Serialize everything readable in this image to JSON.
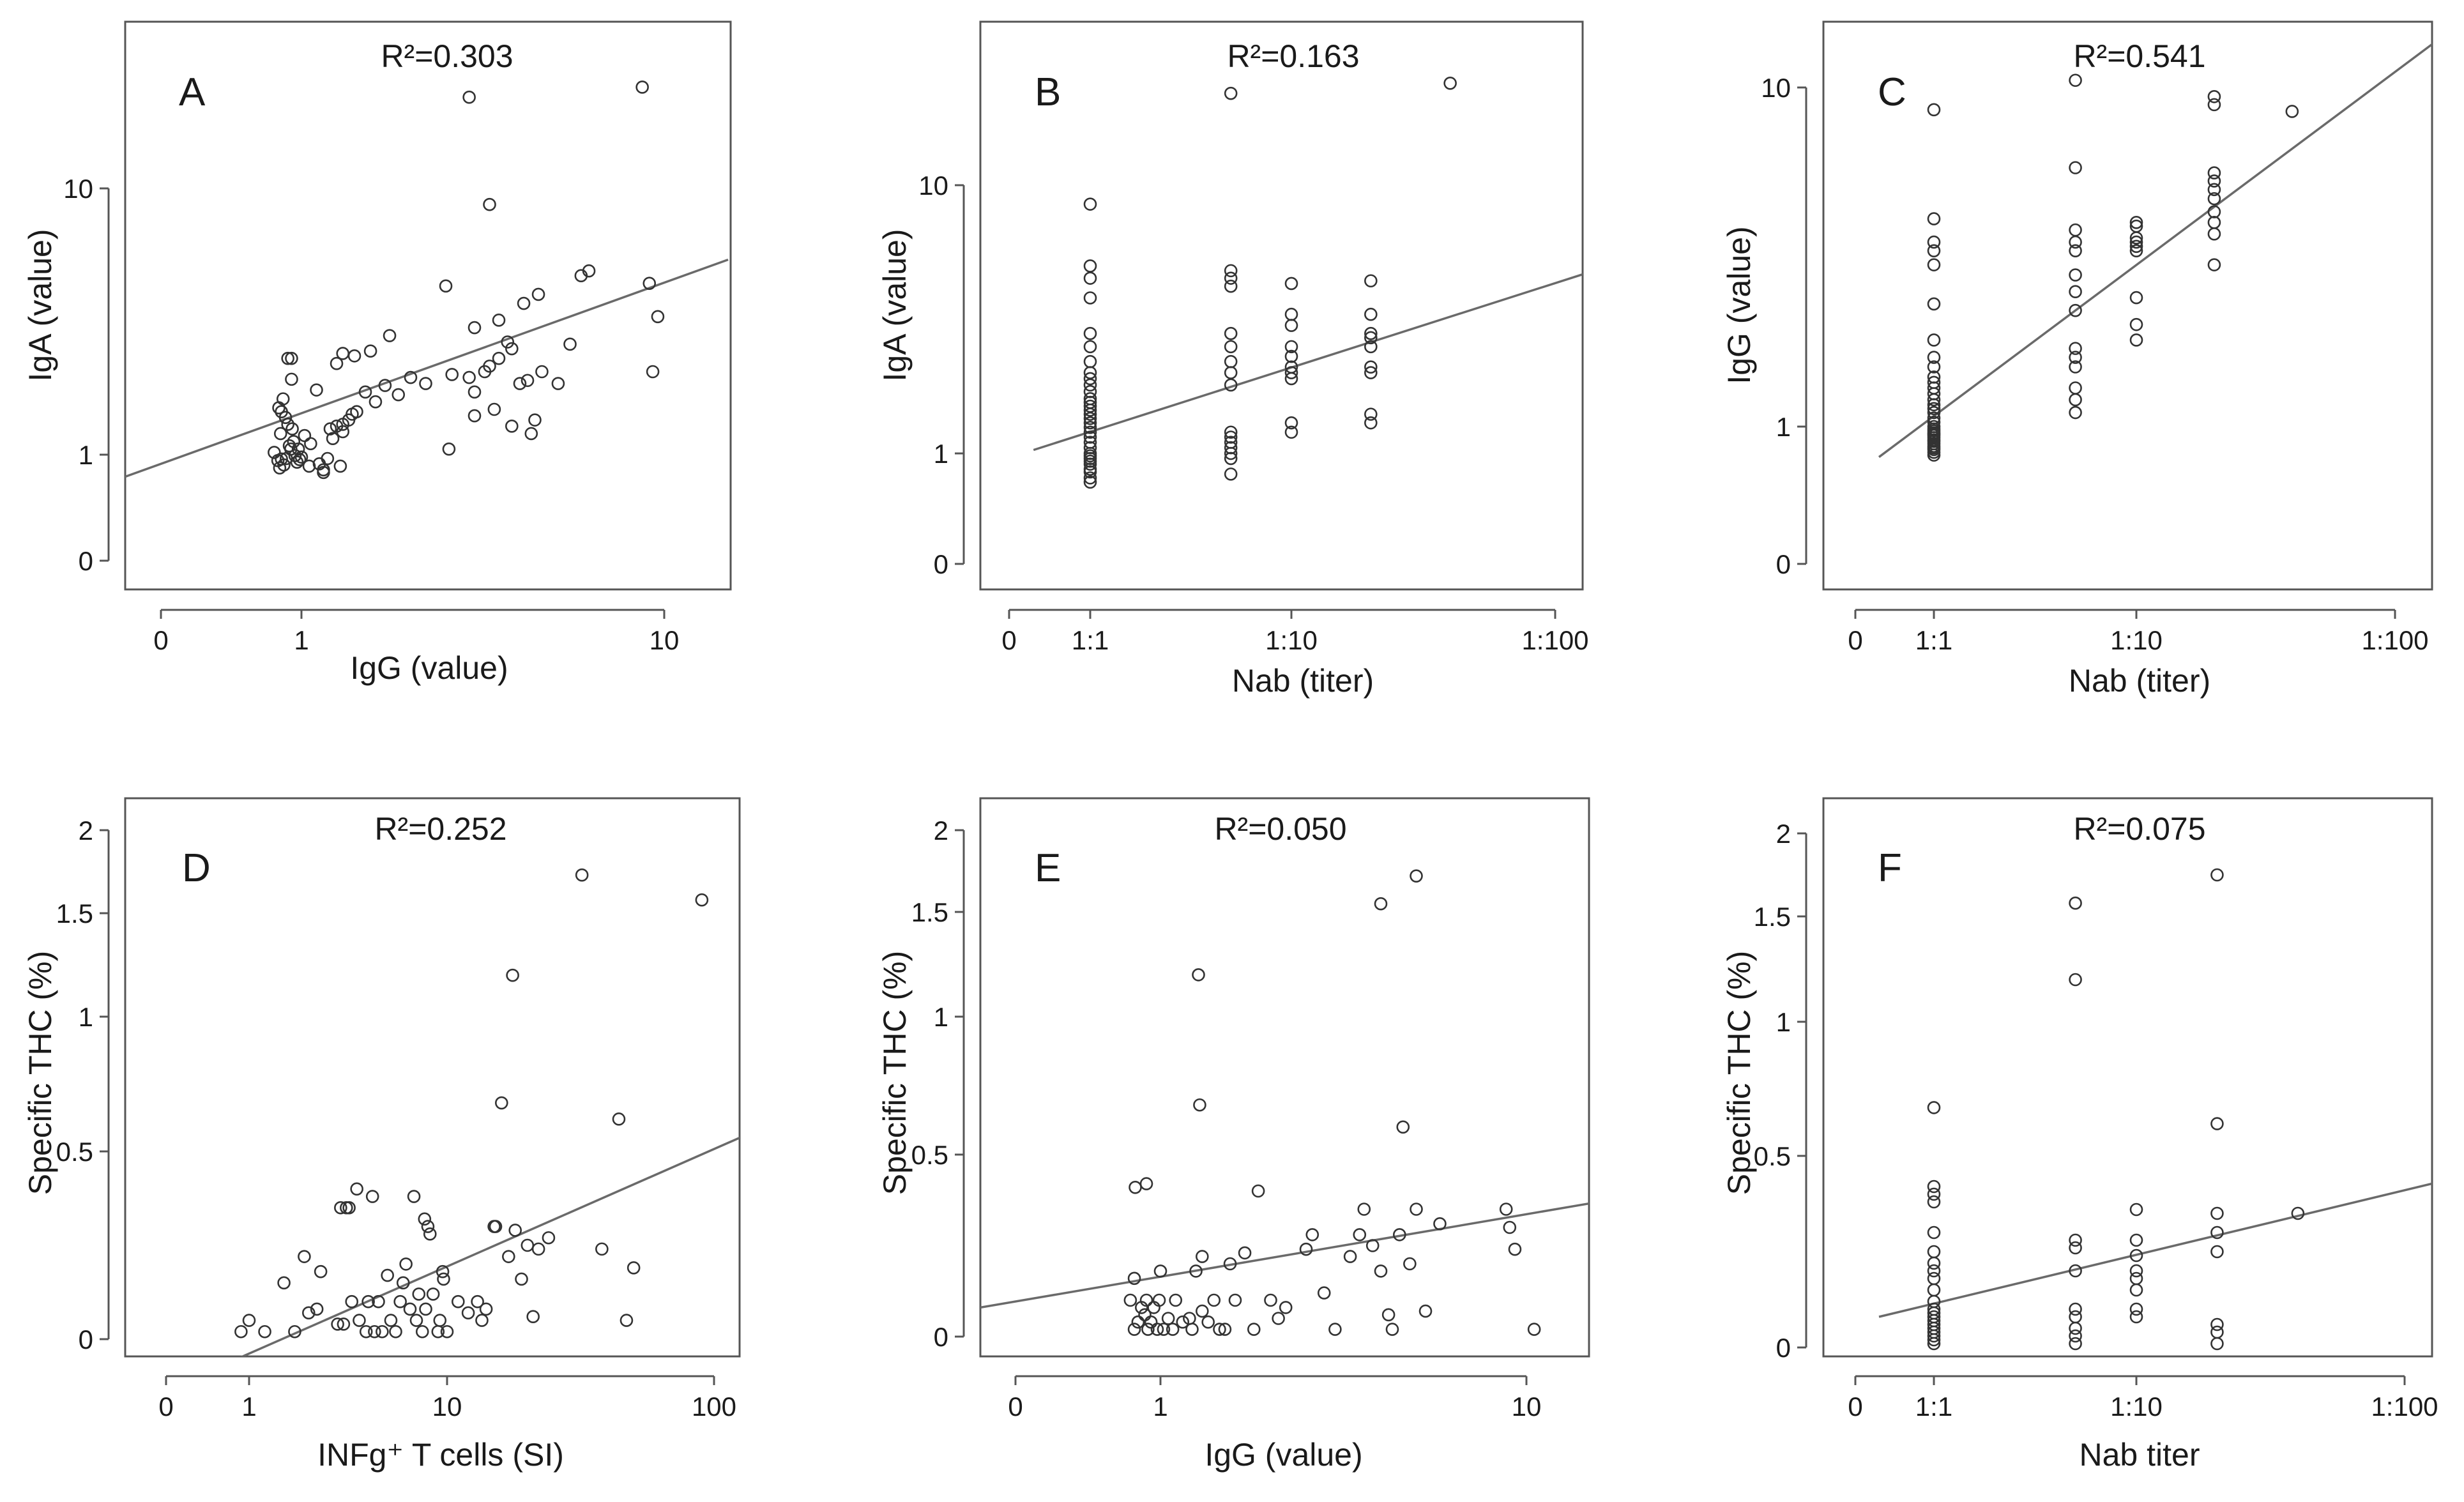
{
  "chart_data": [
    {
      "type": "scatter",
      "panel": "A",
      "annotation": "R²=0.303",
      "xlabel": "IgG (value)",
      "ylabel": "IgA (value)",
      "x_ticks": [
        {
          "label": "0",
          "v": 0
        },
        {
          "label": "1",
          "v": 1
        },
        {
          "label": "10",
          "v": 10
        }
      ],
      "y_ticks": [
        {
          "label": "0",
          "v": 0
        },
        {
          "label": "1",
          "v": 1
        },
        {
          "label": "10",
          "v": 10
        }
      ],
      "x": [
        0.64,
        0.68,
        0.72,
        0.75,
        0.78,
        0.82,
        0.86,
        0.9,
        0.95,
        1.0,
        0.69,
        0.74,
        0.8,
        0.88,
        0.93,
        1.02,
        0.71,
        0.77,
        0.84,
        0.97,
        1.05,
        1.12,
        1.18,
        1.25,
        1.3,
        1.22,
        1.35,
        1.42,
        1.5,
        1.6,
        1.7,
        1.85,
        2.0,
        2.2,
        2.6,
        3.0,
        3.2,
        3.5,
        3.8,
        4.2,
        4.6,
        5.1,
        5.5,
        1.15,
        1.28,
        1.4,
        1.55,
        1.75,
        1.15,
        1.2,
        1.3,
        1.38,
        2.55,
        3.0,
        3.4,
        3.8,
        4.0,
        2.9,
        3.3,
        3.7,
        4.1,
        4.5,
        5.9,
        6.2,
        9.1,
        9.6,
        9.3,
        0.7,
        0.8,
        0.85,
        1.06,
        1.1,
        1.25,
        1.3,
        3.0,
        3.5,
        4.3,
        4.4,
        0.72,
        2.5,
        0.85
      ],
      "y": [
        1.02,
        0.88,
        0.91,
        0.8,
        0.92,
        1.08,
        1.25,
        0.98,
        1.05,
        0.95,
        1.5,
        1.62,
        1.3,
        1.12,
        0.85,
        1.18,
        1.2,
        1.38,
        1.05,
        0.9,
        0.78,
        0.82,
        0.92,
        1.28,
        1.22,
        1.15,
        1.35,
        1.45,
        1.72,
        1.58,
        1.82,
        1.68,
        1.95,
        1.85,
        2.0,
        1.72,
        2.05,
        2.3,
        2.5,
        1.9,
        2.05,
        1.85,
        2.6,
        0.72,
        0.78,
        2.35,
        2.45,
        2.8,
        0.68,
        1.25,
        1.3,
        1.42,
        1.05,
        1.4,
        1.48,
        1.28,
        1.85,
        1.95,
        2.15,
        2.65,
        3.7,
        4.0,
        4.7,
        4.9,
        4.4,
        3.3,
        2.05,
        0.75,
        2.3,
        1.92,
        1.1,
        1.75,
        2.2,
        2.4,
        3.0,
        3.2,
        1.2,
        1.35,
        1.45,
        4.3,
        2.3
      ],
      "x_extra": [
        2.9,
        8.7,
        3.3
      ],
      "y_extra": [
        22,
        24,
        8.7
      ],
      "fit": {
        "x0": 0,
        "y0": 0.62,
        "x1": 15,
        "y1": 5.4
      }
    },
    {
      "type": "scatter",
      "panel": "B",
      "annotation": "R²=0.163",
      "xlabel": "Nab (titer)",
      "ylabel": "IgA (value)",
      "x_ticks": [
        {
          "label": "0",
          "v": 0
        },
        {
          "label": "1:1",
          "v": 1
        },
        {
          "label": "1:10",
          "v": 10
        },
        {
          "label": "1:100",
          "v": 100
        }
      ],
      "y_ticks": [
        {
          "label": "0",
          "v": 0
        },
        {
          "label": "1",
          "v": 1
        },
        {
          "label": "10",
          "v": 10
        }
      ],
      "x": [
        1,
        1,
        1,
        1,
        1,
        1,
        1,
        1,
        1,
        1,
        1,
        1,
        1,
        1,
        1,
        1,
        1,
        1,
        1,
        1,
        1,
        1,
        1,
        1,
        1,
        1,
        1,
        1,
        1,
        1,
        1,
        1,
        5,
        5,
        5,
        5,
        5,
        5,
        5,
        5,
        5,
        5,
        5,
        5,
        5,
        5,
        5,
        10,
        10,
        10,
        10,
        10,
        10,
        10,
        10,
        10,
        10,
        20,
        20,
        20,
        20,
        20,
        20,
        20,
        20,
        20,
        40
      ],
      "y": [
        0.55,
        0.6,
        0.68,
        0.72,
        0.8,
        0.85,
        0.9,
        0.95,
        1.0,
        1.05,
        1.1,
        1.15,
        1.2,
        1.25,
        1.3,
        1.35,
        1.4,
        1.45,
        1.5,
        1.55,
        1.6,
        1.7,
        1.8,
        1.9,
        2.0,
        2.2,
        2.5,
        2.8,
        3.8,
        4.5,
        5.0,
        8.5,
        0.65,
        0.9,
        1.0,
        1.1,
        1.15,
        1.8,
        2.0,
        2.2,
        2.5,
        2.8,
        4.2,
        4.5,
        4.8,
        1.2,
        1.05,
        1.2,
        1.3,
        1.9,
        2.0,
        2.1,
        2.3,
        2.5,
        3.0,
        3.3,
        4.3,
        1.3,
        1.4,
        2.0,
        2.1,
        2.5,
        2.7,
        2.8,
        3.3,
        4.4,
        24
      ],
      "x_extra": [
        5
      ],
      "y_extra": [
        22
      ],
      "fit": {
        "x0": 0.2,
        "y0": 1.03,
        "x1": 150,
        "y1": 4.9
      }
    },
    {
      "type": "scatter",
      "panel": "C",
      "annotation": "R²=0.541",
      "xlabel": "Nab (titer)",
      "ylabel": "IgG (value)",
      "x_ticks": [
        {
          "label": "0",
          "v": 0
        },
        {
          "label": "1:1",
          "v": 1
        },
        {
          "label": "1:10",
          "v": 10
        },
        {
          "label": "1:100",
          "v": 100
        }
      ],
      "y_ticks": [
        {
          "label": "0",
          "v": 0
        },
        {
          "label": "1",
          "v": 1
        },
        {
          "label": "10",
          "v": 10
        }
      ],
      "x": [
        1,
        1,
        1,
        1,
        1,
        1,
        1,
        1,
        1,
        1,
        1,
        1,
        1,
        1,
        1,
        1,
        1,
        1,
        1,
        1,
        1,
        1,
        1,
        1,
        1,
        1,
        1,
        1,
        1,
        1,
        1,
        1,
        1,
        1,
        5,
        5,
        5,
        5,
        5,
        5,
        5,
        5,
        5,
        5,
        5,
        5,
        5,
        5,
        10,
        10,
        10,
        10,
        10,
        10,
        10,
        10,
        10,
        20,
        20,
        20,
        20,
        20,
        20,
        20,
        20,
        20,
        20,
        40
      ],
      "y": [
        0.62,
        0.65,
        0.68,
        0.7,
        0.72,
        0.75,
        0.78,
        0.8,
        0.83,
        0.86,
        0.88,
        0.9,
        0.93,
        0.96,
        1.0,
        1.03,
        1.06,
        1.1,
        1.13,
        1.16,
        1.2,
        1.25,
        1.3,
        1.35,
        1.4,
        1.5,
        1.6,
        1.8,
        2.3,
        3.0,
        3.3,
        3.5,
        4.1,
        8.6,
        1.1,
        1.2,
        1.3,
        1.5,
        1.6,
        1.7,
        2.2,
        2.5,
        2.8,
        3.3,
        3.5,
        3.8,
        5.8,
        10.5,
        1.8,
        2.0,
        2.4,
        3.3,
        3.4,
        3.5,
        3.6,
        3.9,
        4.0,
        3.0,
        3.7,
        4.0,
        4.3,
        4.7,
        5.0,
        5.3,
        5.6,
        8.9,
        9.4,
        8.5
      ],
      "fit": {
        "x0": 0.2,
        "y0": 0.6,
        "x1": 150,
        "y1": 14
      }
    },
    {
      "type": "scatter",
      "panel": "D",
      "annotation": "R²=0.252",
      "xlabel": "INFg⁺ T cells (SI)",
      "ylabel": "Specific THC (%)",
      "x_ticks": [
        {
          "label": "0",
          "v": 0
        },
        {
          "label": "1",
          "v": 1
        },
        {
          "label": "10",
          "v": 10
        },
        {
          "label": "100",
          "v": 100
        }
      ],
      "y_ticks": [
        {
          "label": "0",
          "v": 0
        },
        {
          "label": "0.5",
          "v": 0.5
        },
        {
          "label": "1",
          "v": 1
        },
        {
          "label": "1.5",
          "v": 1.5
        },
        {
          "label": "2",
          "v": 2
        }
      ],
      "x": [
        0.8,
        1.0,
        1.2,
        1.5,
        1.7,
        1.9,
        2.0,
        2.2,
        2.3,
        2.8,
        2.9,
        3.0,
        3.1,
        3.3,
        3.6,
        3.9,
        4.0,
        4.3,
        4.5,
        4.7,
        5.0,
        5.2,
        5.5,
        5.8,
        6.0,
        6.2,
        6.5,
        7.0,
        7.2,
        7.5,
        7.8,
        8.0,
        8.5,
        9.0,
        9.2,
        9.5,
        10,
        11,
        12,
        13,
        14,
        15,
        16,
        17,
        18,
        19,
        20,
        21,
        22,
        3.2,
        3.5,
        4.2,
        6.8,
        7.7,
        8.2,
        9.6,
        13.5,
        15.2,
        17.6,
        24,
        38,
        44,
        50,
        47,
        32,
        90
      ],
      "y": [
        0.02,
        0.05,
        0.02,
        0.15,
        0.02,
        0.22,
        0.07,
        0.08,
        0.18,
        0.04,
        0.35,
        0.04,
        0.35,
        0.1,
        0.05,
        0.02,
        0.1,
        0.02,
        0.1,
        0.02,
        0.17,
        0.05,
        0.02,
        0.1,
        0.15,
        0.2,
        0.08,
        0.05,
        0.12,
        0.02,
        0.08,
        0.3,
        0.12,
        0.02,
        0.05,
        0.18,
        0.02,
        0.1,
        0.07,
        0.1,
        0.08,
        0.3,
        0.68,
        0.22,
        0.29,
        0.16,
        0.25,
        0.06,
        0.24,
        0.35,
        0.4,
        0.38,
        0.38,
        0.32,
        0.28,
        0.16,
        0.05,
        0.3,
        1.2,
        0.27,
        0.24,
        0.62,
        0.19,
        0.05,
        1.73,
        1.58
      ],
      "fit": {
        "x0": 0.6,
        "y0": -0.06,
        "x1": 200,
        "y1": 0.64
      }
    },
    {
      "type": "scatter",
      "panel": "E",
      "annotation": "R²=0.050",
      "xlabel": "IgG (value)",
      "ylabel": "Specific THC (%)",
      "x_ticks": [
        {
          "label": "0",
          "v": 0
        },
        {
          "label": "1",
          "v": 1
        },
        {
          "label": "10",
          "v": 10
        }
      ],
      "y_ticks": [
        {
          "label": "0",
          "v": 0
        },
        {
          "label": "0.5",
          "v": 0.5
        },
        {
          "label": "1",
          "v": 1
        },
        {
          "label": "1.5",
          "v": 1.5
        },
        {
          "label": "2",
          "v": 2
        }
      ],
      "x": [
        0.62,
        0.66,
        0.7,
        0.74,
        0.78,
        0.8,
        0.82,
        0.86,
        0.9,
        0.95,
        0.98,
        1.0,
        1.02,
        1.05,
        1.08,
        1.1,
        1.15,
        1.2,
        1.22,
        1.25,
        1.3,
        1.35,
        1.4,
        1.45,
        1.5,
        1.55,
        1.6,
        1.7,
        1.8,
        2.0,
        2.1,
        2.2,
        2.5,
        2.6,
        2.8,
        3.0,
        3.3,
        3.5,
        3.6,
        3.8,
        4.0,
        4.2,
        4.3,
        4.5,
        4.8,
        5.0,
        5.3,
        5.8,
        8.8,
        9.0,
        9.3,
        10.5,
        0.66,
        0.67,
        0.8,
        1.3,
        1.28,
        1.27,
        1.85,
        4.0,
        4.6
      ],
      "y": [
        0.1,
        0.02,
        0.04,
        0.08,
        0.06,
        0.1,
        0.02,
        0.04,
        0.08,
        0.02,
        0.1,
        0.18,
        0.02,
        0.05,
        0.02,
        0.1,
        0.04,
        0.05,
        0.02,
        0.18,
        0.07,
        0.04,
        0.1,
        0.02,
        0.02,
        0.2,
        0.1,
        0.23,
        0.02,
        0.1,
        0.05,
        0.08,
        0.24,
        0.28,
        0.12,
        0.02,
        0.22,
        0.28,
        0.35,
        0.25,
        0.18,
        0.06,
        0.02,
        0.28,
        0.2,
        0.35,
        0.07,
        0.31,
        0.35,
        0.3,
        0.24,
        0.02,
        0.16,
        0.41,
        0.42,
        0.22,
        0.68,
        1.2,
        0.4,
        1.55,
        0.6
      ],
      "x_extra": [
        5.0
      ],
      "y_extra": [
        1.72
      ],
      "fit": {
        "x0": 0,
        "y0": 0.08,
        "x1": 18,
        "y1": 0.38
      }
    },
    {
      "type": "scatter",
      "panel": "F",
      "annotation": "R²=0.075",
      "xlabel": "Nab titer",
      "ylabel": "Specific THC (%)",
      "x_ticks": [
        {
          "label": "0",
          "v": 0
        },
        {
          "label": "1:1",
          "v": 1
        },
        {
          "label": "1:10",
          "v": 10
        },
        {
          "label": "1:100",
          "v": 100
        }
      ],
      "y_ticks": [
        {
          "label": "0",
          "v": 0
        },
        {
          "label": "0.5",
          "v": 0.5
        },
        {
          "label": "1",
          "v": 1
        },
        {
          "label": "1.5",
          "v": 1.5
        },
        {
          "label": "2",
          "v": 2
        }
      ],
      "x": [
        1,
        1,
        1,
        1,
        1,
        1,
        1,
        1,
        1,
        1,
        1,
        1,
        1,
        1,
        1,
        1,
        1,
        1,
        1,
        1,
        1,
        5,
        5,
        5,
        5,
        5,
        5,
        5,
        5,
        5,
        5,
        10,
        10,
        10,
        10,
        10,
        10,
        10,
        10,
        20,
        20,
        20,
        20,
        20,
        20,
        20,
        20,
        40
      ],
      "y": [
        0.01,
        0.02,
        0.03,
        0.04,
        0.05,
        0.06,
        0.07,
        0.08,
        0.09,
        0.1,
        0.12,
        0.15,
        0.18,
        0.2,
        0.22,
        0.25,
        0.3,
        0.38,
        0.4,
        0.42,
        0.68,
        0.01,
        0.03,
        0.05,
        0.08,
        0.1,
        0.2,
        0.26,
        0.28,
        1.2,
        1.58,
        0.08,
        0.1,
        0.15,
        0.18,
        0.2,
        0.24,
        0.28,
        0.36,
        0.01,
        0.04,
        0.06,
        0.25,
        0.3,
        0.35,
        0.62,
        1.75,
        0.35
      ],
      "fit": {
        "x0": 0.2,
        "y0": 0.08,
        "x1": 150,
        "y1": 0.44
      }
    }
  ]
}
